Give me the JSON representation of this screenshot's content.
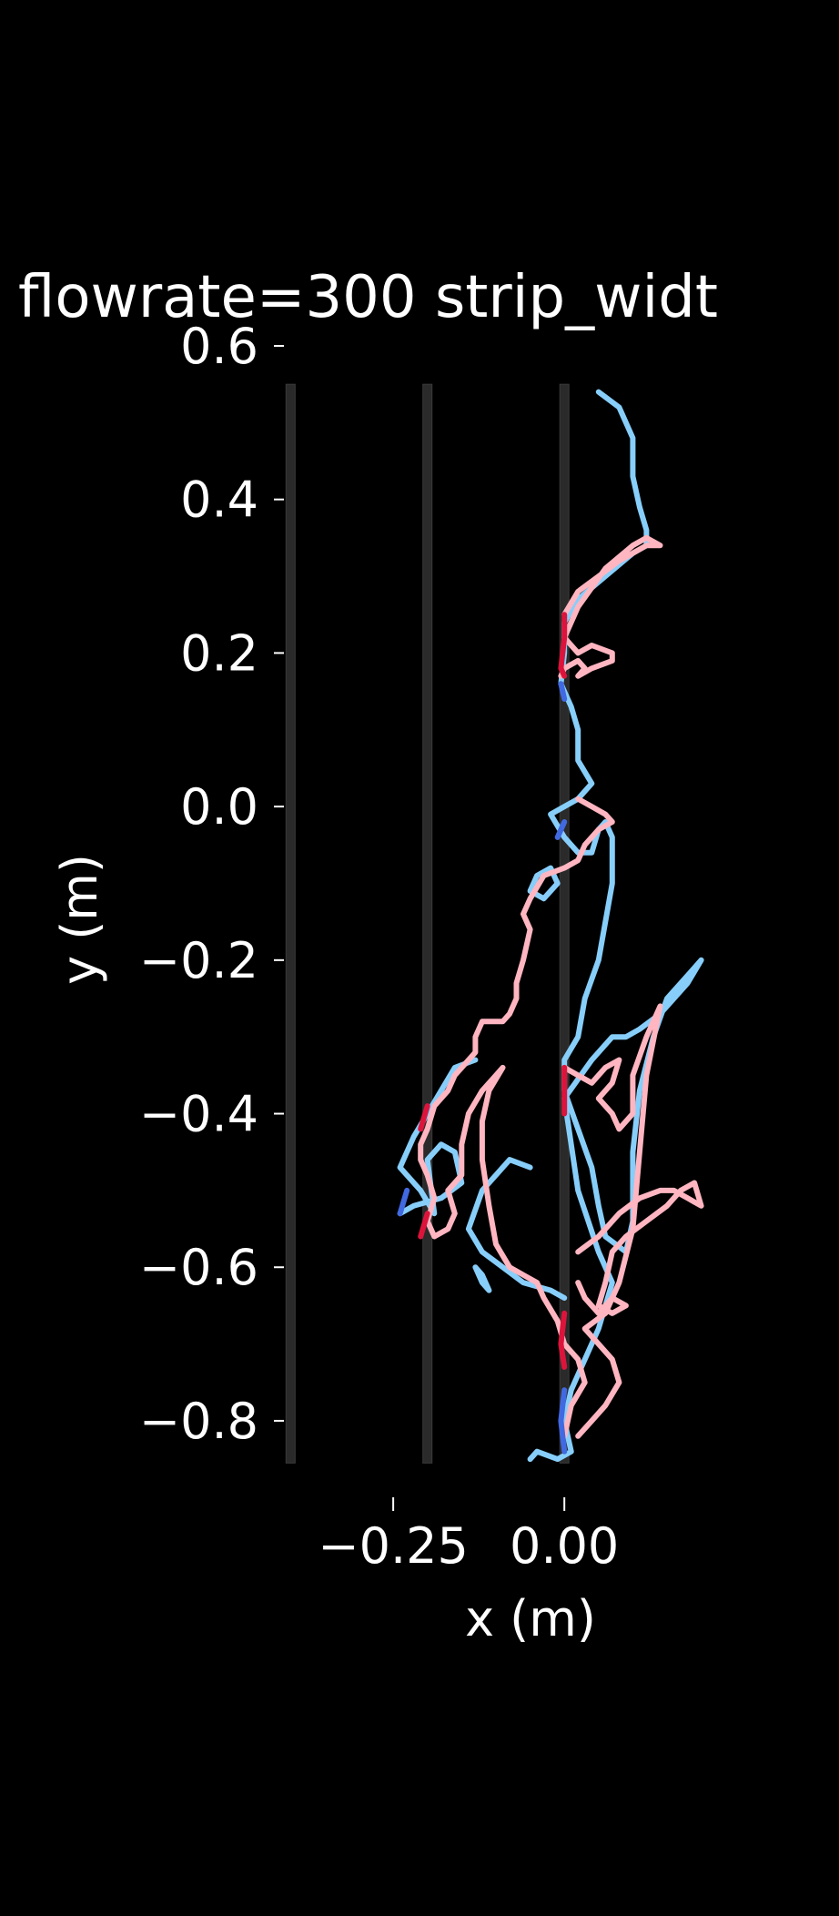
{
  "chart_data": {
    "type": "line",
    "title": "flowrate=300 strip_widt",
    "xlabel": "x (m)",
    "ylabel": "y (m)",
    "xlim": [
      -0.415,
      0.255
    ],
    "ylim": [
      -0.87,
      0.6
    ],
    "x_ticks": [
      {
        "value": -0.25,
        "label": "−0.25"
      },
      {
        "value": 0.0,
        "label": "0.00"
      }
    ],
    "y_ticks": [
      {
        "value": 0.6,
        "label": "0.6"
      },
      {
        "value": 0.4,
        "label": "0.4"
      },
      {
        "value": 0.2,
        "label": "0.2"
      },
      {
        "value": 0.0,
        "label": "0.0"
      },
      {
        "value": -0.2,
        "label": "−0.2"
      },
      {
        "value": -0.4,
        "label": "−0.4"
      },
      {
        "value": -0.6,
        "label": "−0.6"
      },
      {
        "value": -0.8,
        "label": "−0.8"
      }
    ],
    "grid": false,
    "legend": "none",
    "strips": {
      "x": [
        -0.4,
        -0.2,
        0.0
      ],
      "y_range": [
        -0.855,
        0.55
      ],
      "color": "#2a2a2a"
    },
    "series": [
      {
        "color": "#87cefa",
        "points": [
          [
            0.05,
            0.54
          ],
          [
            0.08,
            0.52
          ],
          [
            0.1,
            0.48
          ],
          [
            0.1,
            0.43
          ],
          [
            0.11,
            0.39
          ],
          [
            0.12,
            0.36
          ],
          [
            0.12,
            0.34
          ],
          [
            0.1,
            0.33
          ],
          [
            0.06,
            0.3
          ],
          [
            0.02,
            0.27
          ],
          [
            0.0,
            0.24
          ],
          [
            0.0,
            0.2
          ],
          [
            -0.005,
            0.16
          ],
          [
            0.01,
            0.13
          ],
          [
            0.02,
            0.1
          ],
          [
            0.02,
            0.06
          ],
          [
            0.04,
            0.03
          ],
          [
            0.02,
            0.01
          ],
          [
            0.0,
            0.0
          ],
          [
            -0.02,
            -0.01
          ],
          [
            0.0,
            -0.04
          ],
          [
            0.02,
            -0.06
          ],
          [
            0.04,
            -0.06
          ],
          [
            0.05,
            -0.03
          ],
          [
            0.06,
            -0.02
          ],
          [
            0.07,
            -0.04
          ],
          [
            0.07,
            -0.1
          ],
          [
            0.06,
            -0.15
          ],
          [
            0.05,
            -0.2
          ],
          [
            0.03,
            -0.25
          ],
          [
            0.02,
            -0.3
          ],
          [
            0.0,
            -0.33
          ],
          [
            0.0,
            -0.37
          ],
          [
            0.02,
            -0.42
          ],
          [
            0.04,
            -0.47
          ],
          [
            0.05,
            -0.52
          ],
          [
            0.06,
            -0.56
          ],
          [
            0.09,
            -0.58
          ],
          [
            0.1,
            -0.54
          ],
          [
            0.1,
            -0.45
          ],
          [
            0.11,
            -0.37
          ],
          [
            0.13,
            -0.3
          ],
          [
            0.15,
            -0.25
          ],
          [
            0.18,
            -0.22
          ],
          [
            0.2,
            -0.2
          ],
          [
            0.18,
            -0.23
          ],
          [
            0.14,
            -0.27
          ],
          [
            0.11,
            -0.29
          ],
          [
            0.09,
            -0.3
          ],
          [
            0.07,
            -0.3
          ],
          [
            0.04,
            -0.33
          ],
          [
            0.0,
            -0.38
          ],
          [
            0.02,
            -0.5
          ],
          [
            0.05,
            -0.58
          ],
          [
            0.07,
            -0.62
          ],
          [
            0.05,
            -0.68
          ],
          [
            0.03,
            -0.72
          ],
          [
            0.01,
            -0.76
          ],
          [
            0.0,
            -0.8
          ],
          [
            0.01,
            -0.84
          ],
          [
            -0.01,
            -0.85
          ],
          [
            -0.04,
            -0.84
          ],
          [
            -0.05,
            -0.85
          ]
        ]
      },
      {
        "color": "#87cefa",
        "points": [
          [
            -0.04,
            -0.09
          ],
          [
            -0.02,
            -0.08
          ],
          [
            -0.01,
            -0.1
          ],
          [
            -0.03,
            -0.12
          ],
          [
            -0.05,
            -0.11
          ],
          [
            -0.04,
            -0.09
          ]
        ]
      },
      {
        "color": "#87cefa",
        "points": [
          [
            -0.05,
            -0.47
          ],
          [
            -0.08,
            -0.46
          ],
          [
            -0.1,
            -0.48
          ],
          [
            -0.12,
            -0.5
          ],
          [
            -0.14,
            -0.55
          ],
          [
            -0.12,
            -0.58
          ],
          [
            -0.09,
            -0.6
          ],
          [
            -0.06,
            -0.62
          ],
          [
            -0.02,
            -0.63
          ],
          [
            0.0,
            -0.64
          ]
        ]
      },
      {
        "color": "#87cefa",
        "points": [
          [
            -0.13,
            -0.33
          ],
          [
            -0.16,
            -0.34
          ],
          [
            -0.18,
            -0.37
          ],
          [
            -0.2,
            -0.4
          ],
          [
            -0.22,
            -0.43
          ],
          [
            -0.24,
            -0.47
          ],
          [
            -0.21,
            -0.5
          ],
          [
            -0.19,
            -0.53
          ],
          [
            -0.2,
            -0.46
          ],
          [
            -0.18,
            -0.44
          ],
          [
            -0.16,
            -0.45
          ],
          [
            -0.15,
            -0.49
          ],
          [
            -0.18,
            -0.51
          ],
          [
            -0.22,
            -0.52
          ],
          [
            -0.24,
            -0.53
          ]
        ]
      },
      {
        "color": "#87cefa",
        "points": [
          [
            -0.13,
            -0.6
          ],
          [
            -0.12,
            -0.62
          ],
          [
            -0.11,
            -0.63
          ],
          [
            -0.12,
            -0.61
          ],
          [
            -0.13,
            -0.6
          ]
        ]
      },
      {
        "color": "#ffb6c1",
        "points": [
          [
            0.0,
            0.25
          ],
          [
            0.02,
            0.28
          ],
          [
            0.05,
            0.3
          ],
          [
            0.08,
            0.32
          ],
          [
            0.1,
            0.33
          ],
          [
            0.12,
            0.34
          ],
          [
            0.14,
            0.34
          ],
          [
            0.12,
            0.35
          ],
          [
            0.1,
            0.34
          ],
          [
            0.06,
            0.31
          ],
          [
            0.02,
            0.26
          ],
          [
            0.0,
            0.22
          ],
          [
            0.02,
            0.2
          ],
          [
            0.04,
            0.21
          ],
          [
            0.07,
            0.2
          ],
          [
            0.07,
            0.19
          ],
          [
            0.04,
            0.18
          ],
          [
            0.02,
            0.17
          ],
          [
            0.03,
            0.18
          ],
          [
            0.02,
            0.19
          ],
          [
            0.0,
            0.18
          ],
          [
            -0.005,
            0.17
          ]
        ]
      },
      {
        "color": "#ffb6c1",
        "points": [
          [
            0.02,
            0.01
          ],
          [
            0.04,
            0.0
          ],
          [
            0.06,
            -0.01
          ],
          [
            0.07,
            -0.02
          ],
          [
            0.05,
            -0.03
          ],
          [
            0.03,
            -0.05
          ],
          [
            0.02,
            -0.07
          ],
          [
            0.0,
            -0.08
          ],
          [
            -0.03,
            -0.09
          ],
          [
            -0.05,
            -0.12
          ],
          [
            -0.06,
            -0.14
          ],
          [
            -0.05,
            -0.16
          ],
          [
            -0.06,
            -0.2
          ],
          [
            -0.07,
            -0.23
          ],
          [
            -0.07,
            -0.25
          ],
          [
            -0.08,
            -0.27
          ],
          [
            -0.09,
            -0.28
          ],
          [
            -0.12,
            -0.28
          ],
          [
            -0.13,
            -0.3
          ],
          [
            -0.13,
            -0.32
          ],
          [
            -0.14,
            -0.33
          ],
          [
            -0.16,
            -0.35
          ],
          [
            -0.17,
            -0.37
          ],
          [
            -0.19,
            -0.39
          ],
          [
            -0.2,
            -0.42
          ],
          [
            -0.21,
            -0.44
          ],
          [
            -0.21,
            -0.46
          ],
          [
            -0.2,
            -0.48
          ],
          [
            -0.19,
            -0.51
          ],
          [
            -0.2,
            -0.54
          ],
          [
            -0.19,
            -0.56
          ],
          [
            -0.17,
            -0.55
          ],
          [
            -0.16,
            -0.53
          ],
          [
            -0.17,
            -0.5
          ],
          [
            -0.15,
            -0.48
          ],
          [
            -0.15,
            -0.44
          ],
          [
            -0.14,
            -0.4
          ],
          [
            -0.12,
            -0.37
          ],
          [
            -0.1,
            -0.35
          ],
          [
            -0.09,
            -0.34
          ],
          [
            -0.11,
            -0.37
          ],
          [
            -0.12,
            -0.41
          ],
          [
            -0.12,
            -0.46
          ],
          [
            -0.11,
            -0.52
          ],
          [
            -0.1,
            -0.57
          ],
          [
            -0.08,
            -0.6
          ],
          [
            -0.06,
            -0.61
          ],
          [
            -0.04,
            -0.62
          ],
          [
            -0.03,
            -0.64
          ],
          [
            -0.01,
            -0.67
          ],
          [
            0.0,
            -0.7
          ],
          [
            0.02,
            -0.72
          ],
          [
            0.03,
            -0.75
          ],
          [
            0.01,
            -0.78
          ],
          [
            0.0,
            -0.82
          ]
        ]
      },
      {
        "color": "#ffb6c1",
        "points": [
          [
            0.0,
            -0.34
          ],
          [
            0.02,
            -0.35
          ],
          [
            0.04,
            -0.36
          ],
          [
            0.06,
            -0.34
          ],
          [
            0.08,
            -0.33
          ],
          [
            0.07,
            -0.36
          ],
          [
            0.05,
            -0.38
          ],
          [
            0.07,
            -0.4
          ],
          [
            0.08,
            -0.42
          ],
          [
            0.1,
            -0.4
          ],
          [
            0.1,
            -0.35
          ],
          [
            0.12,
            -0.3
          ],
          [
            0.14,
            -0.26
          ],
          [
            0.12,
            -0.35
          ],
          [
            0.11,
            -0.45
          ],
          [
            0.1,
            -0.55
          ],
          [
            0.08,
            -0.62
          ],
          [
            0.06,
            -0.66
          ],
          [
            0.03,
            -0.68
          ],
          [
            0.05,
            -0.7
          ],
          [
            0.07,
            -0.72
          ],
          [
            0.08,
            -0.75
          ],
          [
            0.06,
            -0.78
          ],
          [
            0.04,
            -0.8
          ],
          [
            0.02,
            -0.82
          ]
        ]
      },
      {
        "color": "#ffb6c1",
        "points": [
          [
            0.02,
            -0.58
          ],
          [
            0.05,
            -0.56
          ],
          [
            0.08,
            -0.53
          ],
          [
            0.11,
            -0.51
          ],
          [
            0.14,
            -0.5
          ],
          [
            0.16,
            -0.5
          ],
          [
            0.18,
            -0.51
          ],
          [
            0.2,
            -0.52
          ],
          [
            0.19,
            -0.49
          ],
          [
            0.17,
            -0.5
          ],
          [
            0.15,
            -0.52
          ],
          [
            0.12,
            -0.54
          ],
          [
            0.09,
            -0.56
          ],
          [
            0.07,
            -0.58
          ],
          [
            0.06,
            -0.62
          ],
          [
            0.05,
            -0.65
          ],
          [
            0.07,
            -0.66
          ],
          [
            0.09,
            -0.65
          ],
          [
            0.07,
            -0.64
          ],
          [
            0.05,
            -0.66
          ],
          [
            0.03,
            -0.64
          ],
          [
            0.02,
            -0.62
          ]
        ]
      },
      {
        "color": "#dc143c",
        "points": [
          [
            0.0,
            0.25
          ],
          [
            0.0,
            0.22
          ],
          [
            -0.005,
            0.18
          ],
          [
            0.0,
            0.17
          ]
        ]
      },
      {
        "color": "#dc143c",
        "points": [
          [
            -0.2,
            -0.39
          ],
          [
            -0.21,
            -0.42
          ]
        ]
      },
      {
        "color": "#dc143c",
        "points": [
          [
            -0.2,
            -0.53
          ],
          [
            -0.21,
            -0.56
          ]
        ]
      },
      {
        "color": "#dc143c",
        "points": [
          [
            0.0,
            -0.34
          ],
          [
            0.0,
            -0.4
          ]
        ]
      },
      {
        "color": "#dc143c",
        "points": [
          [
            0.0,
            -0.66
          ],
          [
            -0.005,
            -0.7
          ],
          [
            0.0,
            -0.73
          ]
        ]
      },
      {
        "color": "#4169e1",
        "points": [
          [
            -0.005,
            0.16
          ],
          [
            0.0,
            0.14
          ]
        ]
      },
      {
        "color": "#4169e1",
        "points": [
          [
            0.0,
            -0.02
          ],
          [
            -0.01,
            -0.04
          ]
        ]
      },
      {
        "color": "#4169e1",
        "points": [
          [
            -0.23,
            -0.5
          ],
          [
            -0.24,
            -0.53
          ]
        ]
      },
      {
        "color": "#4169e1",
        "points": [
          [
            0.0,
            -0.76
          ],
          [
            -0.005,
            -0.8
          ],
          [
            0.0,
            -0.84
          ]
        ]
      }
    ]
  }
}
